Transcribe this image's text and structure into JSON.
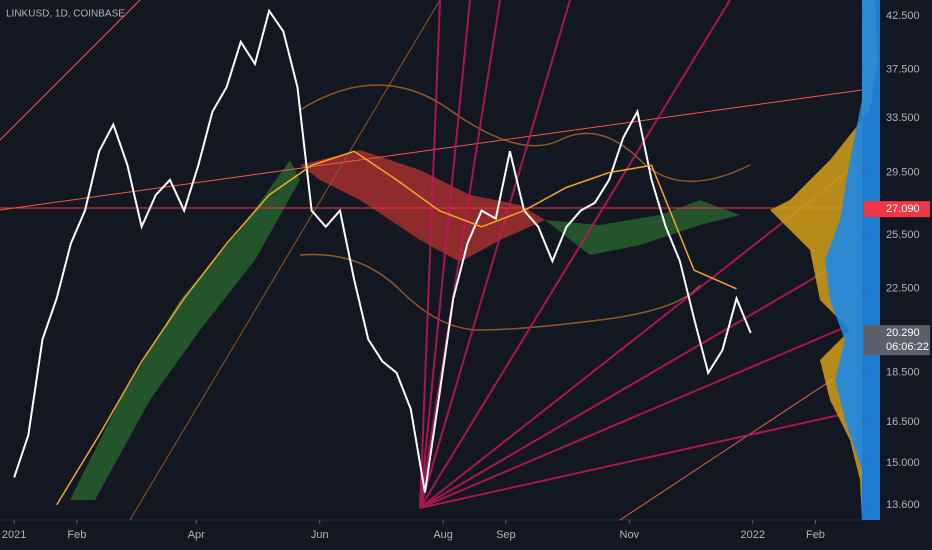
{
  "chart_data": {
    "type": "line",
    "title": "LINKUSD, 1D, COINBASE",
    "log_scale": true,
    "grid": false,
    "xlim": [
      -7,
      419
    ],
    "xticks": [
      {
        "value": 0,
        "label": "2021"
      },
      {
        "value": 31,
        "label": "Feb"
      },
      {
        "value": 90,
        "label": "Apr"
      },
      {
        "value": 151,
        "label": "Jun"
      },
      {
        "value": 212,
        "label": "Aug"
      },
      {
        "value": 243,
        "label": "Sep"
      },
      {
        "value": 304,
        "label": "Nov"
      },
      {
        "value": 365,
        "label": "2022"
      },
      {
        "value": 396,
        "label": "Feb"
      }
    ],
    "ylim": [
      13.13,
      44.1
    ],
    "yticks": [
      {
        "value": 13.6,
        "label": "13.600"
      },
      {
        "value": 15,
        "label": "15.000"
      },
      {
        "value": 16.5,
        "label": "16.500"
      },
      {
        "value": 18.5,
        "label": "18.500"
      },
      {
        "value": 22.5,
        "label": "22.500"
      },
      {
        "value": 25.5,
        "label": "25.500"
      },
      {
        "value": 29.5,
        "label": "29.500"
      },
      {
        "value": 33.5,
        "label": "33.500"
      },
      {
        "value": 37.5,
        "label": "37.500"
      },
      {
        "value": 42.5,
        "label": "42.500"
      }
    ],
    "price_markers": [
      {
        "value": 27.09,
        "label": "27.090",
        "color": "#f23645"
      },
      {
        "value": 20.29,
        "label": "20.290",
        "sublabel": "06:06:22",
        "color": "#5d606b"
      }
    ],
    "series": [
      {
        "color": "#ffffff",
        "x": [
          0,
          7,
          14,
          21,
          28,
          35,
          42,
          49,
          56,
          63,
          70,
          77,
          84,
          91,
          98,
          105,
          112,
          119,
          126,
          133,
          140,
          147,
          154,
          161,
          168,
          175,
          182,
          189,
          196,
          203,
          210,
          217,
          224,
          231,
          238,
          245,
          252,
          259,
          266,
          273,
          280,
          287,
          294,
          301,
          308,
          315,
          322,
          329,
          336,
          343,
          350,
          357,
          364
        ],
        "values": [
          14.5,
          16,
          20,
          22,
          25,
          27,
          31,
          33,
          30,
          26,
          28,
          29,
          27,
          30,
          34,
          36,
          40,
          38,
          43,
          41,
          36,
          27,
          26,
          27,
          23,
          20,
          19,
          18.5,
          17,
          14,
          17.5,
          22,
          25,
          27,
          26.5,
          31,
          27,
          26,
          24,
          26,
          27,
          27.5,
          29,
          32,
          34,
          29,
          26,
          24,
          21,
          18.5,
          19.5,
          22,
          20.3
        ]
      },
      {
        "color": "#f5a623",
        "x": [
          21,
          42,
          63,
          84,
          105,
          126,
          147,
          168,
          189,
          210,
          231,
          252,
          273,
          294,
          315,
          336,
          357
        ],
        "values": [
          13.6,
          16,
          19,
          22,
          25,
          28,
          30,
          31,
          29,
          27,
          26,
          27,
          28.5,
          29.5,
          30,
          23.5,
          22.5
        ]
      }
    ]
  }
}
